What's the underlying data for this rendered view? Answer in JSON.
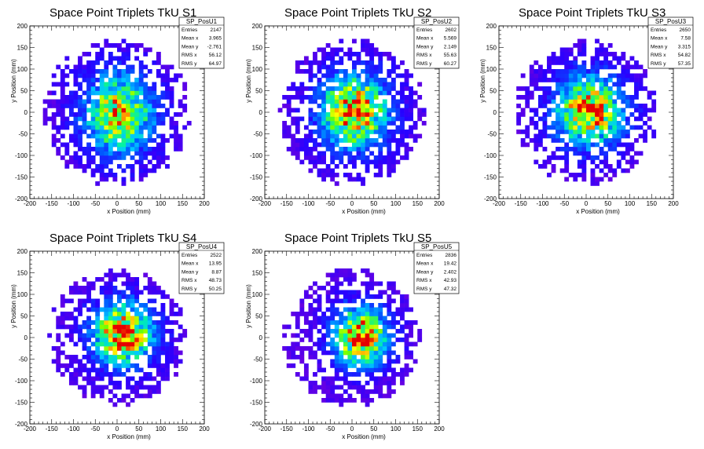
{
  "chart_data": [
    {
      "type": "heatmap",
      "title": "Space Point Triplets TkU S1",
      "xlabel": "x Position (mm)",
      "ylabel": "y Position (mm)",
      "xlim": [
        -200,
        200
      ],
      "ylim": [
        -200,
        200
      ],
      "xticks": [
        -200,
        -150,
        -100,
        -50,
        0,
        50,
        100,
        150,
        200
      ],
      "yticks": [
        -200,
        -150,
        -100,
        -50,
        0,
        50,
        100,
        150,
        200
      ],
      "stats": {
        "name": "SP_PosU1",
        "rows": [
          {
            "label": "Entries",
            "value": "2147"
          },
          {
            "label": "Mean x",
            "value": "3.965"
          },
          {
            "label": "Mean y",
            "value": "-2.761"
          },
          {
            "label": "RMS x",
            "value": "56.12"
          },
          {
            "label": "RMS y",
            "value": "64.97"
          }
        ]
      },
      "bin_width": 10,
      "sigma_x": 56.12,
      "sigma_y": 64.97,
      "mean_x": 3.965,
      "mean_y": -2.761,
      "radius": 160,
      "peak": 0.85
    },
    {
      "type": "heatmap",
      "title": "Space Point Triplets TkU S2",
      "xlabel": "x Position (mm)",
      "ylabel": "y Position (mm)",
      "xlim": [
        -200,
        200
      ],
      "ylim": [
        -200,
        200
      ],
      "xticks": [
        -200,
        -150,
        -100,
        -50,
        0,
        50,
        100,
        150,
        200
      ],
      "yticks": [
        -200,
        -150,
        -100,
        -50,
        0,
        50,
        100,
        150,
        200
      ],
      "stats": {
        "name": "SP_PosU2",
        "rows": [
          {
            "label": "Entries",
            "value": "2602"
          },
          {
            "label": "Mean x",
            "value": "5.569"
          },
          {
            "label": "Mean y",
            "value": "2.149"
          },
          {
            "label": "RMS x",
            "value": "55.63"
          },
          {
            "label": "RMS y",
            "value": "60.27"
          }
        ]
      },
      "bin_width": 10,
      "sigma_x": 55.63,
      "sigma_y": 60.27,
      "mean_x": 5.569,
      "mean_y": 2.149,
      "radius": 160,
      "peak": 0.95
    },
    {
      "type": "heatmap",
      "title": "Space Point Triplets TkU S3",
      "xlabel": "x Position (mm)",
      "ylabel": "y Position (mm)",
      "xlim": [
        -200,
        200
      ],
      "ylim": [
        -200,
        200
      ],
      "xticks": [
        -200,
        -150,
        -100,
        -50,
        0,
        50,
        100,
        150,
        200
      ],
      "yticks": [
        -200,
        -150,
        -100,
        -50,
        0,
        50,
        100,
        150,
        200
      ],
      "stats": {
        "name": "SP_PosU3",
        "rows": [
          {
            "label": "Entries",
            "value": "2650"
          },
          {
            "label": "Mean x",
            "value": "7.58"
          },
          {
            "label": "Mean y",
            "value": "3.315"
          },
          {
            "label": "RMS x",
            "value": "54.82"
          },
          {
            "label": "RMS y",
            "value": "57.35"
          }
        ]
      },
      "bin_width": 10,
      "sigma_x": 54.82,
      "sigma_y": 57.35,
      "mean_x": 7.58,
      "mean_y": 3.315,
      "radius": 160,
      "peak": 0.95
    },
    {
      "type": "heatmap",
      "title": "Space Point Triplets TkU S4",
      "xlabel": "x Position (mm)",
      "ylabel": "y Position (mm)",
      "xlim": [
        -200,
        200
      ],
      "ylim": [
        -200,
        200
      ],
      "xticks": [
        -200,
        -150,
        -100,
        -50,
        0,
        50,
        100,
        150,
        200
      ],
      "yticks": [
        -200,
        -150,
        -100,
        -50,
        0,
        50,
        100,
        150,
        200
      ],
      "stats": {
        "name": "SP_PosU4",
        "rows": [
          {
            "label": "Entries",
            "value": "2522"
          },
          {
            "label": "Mean x",
            "value": "13.95"
          },
          {
            "label": "Mean y",
            "value": "8.87"
          },
          {
            "label": "RMS x",
            "value": "48.73"
          },
          {
            "label": "RMS y",
            "value": "50.25"
          }
        ]
      },
      "bin_width": 10,
      "sigma_x": 48.73,
      "sigma_y": 50.25,
      "mean_x": 13.95,
      "mean_y": 8.87,
      "radius": 150,
      "peak": 1.0
    },
    {
      "type": "heatmap",
      "title": "Space Point Triplets TkU S5",
      "xlabel": "x Position (mm)",
      "ylabel": "y Position (mm)",
      "xlim": [
        -200,
        200
      ],
      "ylim": [
        -200,
        200
      ],
      "xticks": [
        -200,
        -150,
        -100,
        -50,
        0,
        50,
        100,
        150,
        200
      ],
      "yticks": [
        -200,
        -150,
        -100,
        -50,
        0,
        50,
        100,
        150,
        200
      ],
      "stats": {
        "name": "SP_PosU5",
        "rows": [
          {
            "label": "Entries",
            "value": "2836"
          },
          {
            "label": "Mean x",
            "value": "19.42"
          },
          {
            "label": "Mean y",
            "value": "2.402"
          },
          {
            "label": "RMS x",
            "value": "42.93"
          },
          {
            "label": "RMS y",
            "value": "47.32"
          }
        ]
      },
      "bin_width": 10,
      "sigma_x": 42.93,
      "sigma_y": 47.32,
      "mean_x": 19.42,
      "mean_y": 2.402,
      "radius": 150,
      "peak": 1.0
    }
  ]
}
